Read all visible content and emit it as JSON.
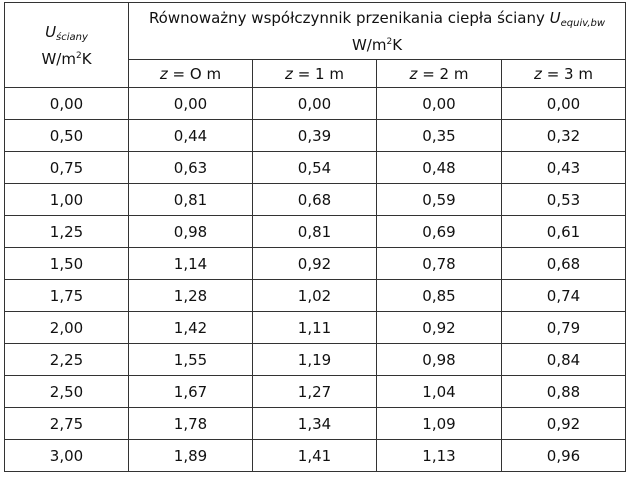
{
  "header": {
    "col0": {
      "symbol": "U",
      "symbol_sub": "ściany",
      "unit_pre": "W/m",
      "unit_sup": "2",
      "unit_post": "K"
    },
    "group": {
      "text": "Równoważny współczynnik przenikania ciepła ściany ",
      "symbol": "U",
      "symbol_sub": "equiv,bw",
      "unit_pre": "W/m",
      "unit_sup": "2",
      "unit_post": "K"
    },
    "depths": [
      {
        "var": "z",
        "rest": " = O m"
      },
      {
        "var": "z",
        "rest": " = 1 m"
      },
      {
        "var": "z",
        "rest": " = 2 m"
      },
      {
        "var": "z",
        "rest": " = 3 m"
      }
    ]
  },
  "rows": [
    [
      "0,00",
      "0,00",
      "0,00",
      "0,00",
      "0,00"
    ],
    [
      "0,50",
      "0,44",
      "0,39",
      "0,35",
      "0,32"
    ],
    [
      "0,75",
      "0,63",
      "0,54",
      "0,48",
      "0,43"
    ],
    [
      "1,00",
      "0,81",
      "0,68",
      "0,59",
      "0,53"
    ],
    [
      "1,25",
      "0,98",
      "0,81",
      "0,69",
      "0,61"
    ],
    [
      "1,50",
      "1,14",
      "0,92",
      "0,78",
      "0,68"
    ],
    [
      "1,75",
      "1,28",
      "1,02",
      "0,85",
      "0,74"
    ],
    [
      "2,00",
      "1,42",
      "1,11",
      "0,92",
      "0,79"
    ],
    [
      "2,25",
      "1,55",
      "1,19",
      "0,98",
      "0,84"
    ],
    [
      "2,50",
      "1,67",
      "1,27",
      "1,04",
      "0,88"
    ],
    [
      "2,75",
      "1,78",
      "1,34",
      "1,09",
      "0,92"
    ],
    [
      "3,00",
      "1,89",
      "1,41",
      "1,13",
      "0,96"
    ]
  ]
}
